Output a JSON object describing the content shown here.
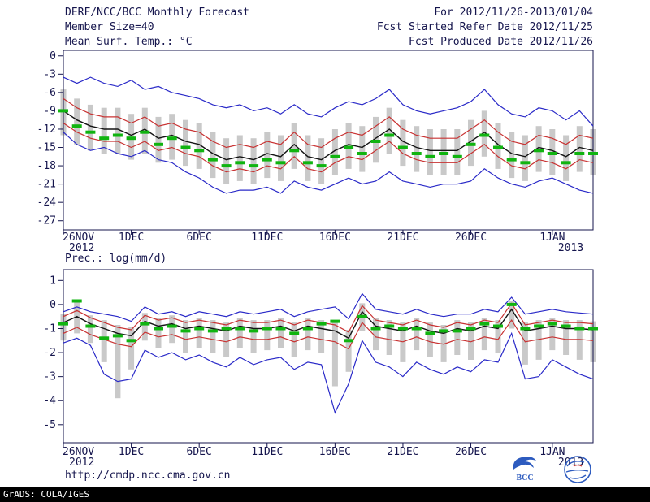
{
  "header": {
    "title": "DERF/NCC/BCC Monthly Forecast",
    "for_range": "For 2012/11/26-2013/01/04",
    "member_size": "Member Size=40",
    "refer_date": "Fcst Started Refer Date 2012/11/25",
    "produced_date": "Fcst Produced Date 2012/11/26"
  },
  "footer": {
    "url": "http://cmdp.ncc.cma.gov.cn",
    "credit": "GrADS: COLA/IGES",
    "bcc_label": "BCC"
  },
  "colors": {
    "blue": "#2a2ac8",
    "red": "#c83232",
    "black": "#141414",
    "green": "#10b410",
    "gray": "#c9c9c9",
    "frame": "#15154d"
  },
  "chart_data": [
    {
      "type": "line",
      "name": "mean-surface-temperature",
      "title": "Mean Surf. Temp.: °C",
      "ylabel": "°C",
      "ylim": [
        -27,
        0
      ],
      "yticks": [
        0,
        -3,
        -6,
        -9,
        -12,
        -15,
        -18,
        -21,
        -24,
        -27
      ],
      "x_days": 40,
      "xticks": [
        {
          "day": 0,
          "label": "26NOV",
          "sub": "2012"
        },
        {
          "day": 5,
          "label": "1DEC"
        },
        {
          "day": 10,
          "label": "6DEC"
        },
        {
          "day": 15,
          "label": "11DEC"
        },
        {
          "day": 20,
          "label": "16DEC"
        },
        {
          "day": 25,
          "label": "21DEC"
        },
        {
          "day": 30,
          "label": "26DEC"
        },
        {
          "day": 36,
          "label": "1JAN",
          "sub": "2013"
        }
      ],
      "bars": {
        "name": "ensemble-spread",
        "top": [
          -5.5,
          -7.0,
          -8.0,
          -8.5,
          -8.5,
          -9.5,
          -8.5,
          -10.0,
          -9.5,
          -10.5,
          -11.0,
          -12.5,
          -13.5,
          -13.0,
          -13.5,
          -12.5,
          -13.0,
          -11.0,
          -13.0,
          -13.5,
          -12.0,
          -11.0,
          -11.5,
          -10.0,
          -8.5,
          -10.5,
          -11.5,
          -12.0,
          -12.0,
          -12.0,
          -10.5,
          -9.0,
          -11.0,
          -12.5,
          -13.0,
          -11.5,
          -12.0,
          -13.0,
          -11.5,
          -12.0
        ],
        "bottom": [
          -13.0,
          -14.5,
          -15.5,
          -16.0,
          -16.0,
          -17.0,
          -16.0,
          -17.5,
          -17.0,
          -18.0,
          -18.5,
          -20.0,
          -21.0,
          -20.5,
          -21.0,
          -20.0,
          -20.5,
          -18.5,
          -20.5,
          -21.0,
          -19.5,
          -18.5,
          -19.0,
          -17.5,
          -16.0,
          -18.0,
          -19.0,
          -19.5,
          -19.5,
          -19.5,
          -18.0,
          -16.5,
          -18.5,
          -20.0,
          -20.5,
          -19.0,
          -19.5,
          -20.5,
          -19.0,
          -19.5
        ]
      },
      "dashes": {
        "name": "daily-highlight",
        "values": [
          -9.0,
          -11.5,
          -12.5,
          -13.5,
          -13.0,
          -13.5,
          -12.5,
          -14.5,
          -13.5,
          -15.0,
          -15.5,
          -17.0,
          -18.0,
          -17.5,
          -18.0,
          -17.0,
          -17.5,
          -15.5,
          -17.5,
          -18.0,
          -16.5,
          -15.0,
          -16.0,
          -14.0,
          -13.0,
          -15.0,
          -16.0,
          -16.5,
          -16.0,
          -16.5,
          -14.5,
          -13.0,
          -15.0,
          -17.0,
          -17.5,
          -15.5,
          -16.0,
          -17.5,
          -16.0,
          -16.0
        ]
      },
      "series": [
        {
          "name": "upper-envelope",
          "color": "blue",
          "values": [
            -3.5,
            -4.5,
            -3.5,
            -4.5,
            -5.0,
            -4.0,
            -5.5,
            -5.0,
            -6.0,
            -6.5,
            -7.0,
            -8.0,
            -8.5,
            -8.0,
            -9.0,
            -8.5,
            -9.5,
            -8.0,
            -9.5,
            -10.0,
            -8.5,
            -7.5,
            -8.0,
            -7.0,
            -5.5,
            -8.0,
            -9.0,
            -9.5,
            -9.0,
            -8.5,
            -7.5,
            -5.5,
            -8.0,
            -9.5,
            -10.0,
            -8.5,
            -9.0,
            -10.5,
            -9.0,
            -11.5
          ]
        },
        {
          "name": "upper-spread",
          "color": "red",
          "values": [
            -7.0,
            -8.5,
            -9.5,
            -10.0,
            -10.0,
            -11.0,
            -10.0,
            -11.5,
            -11.0,
            -12.0,
            -12.5,
            -14.0,
            -15.0,
            -14.5,
            -15.0,
            -14.0,
            -14.5,
            -12.5,
            -14.5,
            -15.0,
            -13.5,
            -12.5,
            -13.0,
            -11.5,
            -10.0,
            -12.0,
            -13.0,
            -13.5,
            -13.5,
            -13.5,
            -12.0,
            -10.5,
            -12.5,
            -14.0,
            -14.5,
            -13.0,
            -13.5,
            -14.5,
            -13.0,
            -13.5
          ]
        },
        {
          "name": "ensemble-mean",
          "color": "black",
          "values": [
            -9.0,
            -10.5,
            -11.5,
            -12.0,
            -12.0,
            -13.0,
            -12.0,
            -13.5,
            -13.0,
            -14.0,
            -14.5,
            -16.0,
            -17.0,
            -16.5,
            -17.0,
            -16.0,
            -16.5,
            -14.5,
            -16.5,
            -17.0,
            -15.5,
            -14.5,
            -15.0,
            -13.5,
            -12.0,
            -14.0,
            -15.0,
            -15.5,
            -15.5,
            -15.5,
            -14.0,
            -12.5,
            -14.5,
            -16.0,
            -16.5,
            -15.0,
            -15.5,
            -16.5,
            -15.0,
            -15.5
          ]
        },
        {
          "name": "lower-spread",
          "color": "red",
          "values": [
            -11.0,
            -12.5,
            -13.5,
            -14.0,
            -14.0,
            -15.0,
            -14.0,
            -15.5,
            -15.0,
            -16.0,
            -16.5,
            -18.0,
            -19.0,
            -18.5,
            -19.0,
            -18.0,
            -18.5,
            -16.5,
            -18.5,
            -19.0,
            -17.5,
            -16.5,
            -17.0,
            -15.5,
            -14.0,
            -16.0,
            -17.0,
            -17.5,
            -17.5,
            -17.5,
            -16.0,
            -14.5,
            -16.5,
            -18.0,
            -18.5,
            -17.0,
            -17.5,
            -18.5,
            -17.0,
            -17.5
          ]
        },
        {
          "name": "lower-envelope",
          "color": "blue",
          "values": [
            -12.5,
            -14.5,
            -15.5,
            -15.0,
            -16.0,
            -16.5,
            -15.5,
            -17.0,
            -17.5,
            -19.0,
            -20.0,
            -21.5,
            -22.5,
            -22.0,
            -22.0,
            -21.5,
            -22.5,
            -20.5,
            -21.5,
            -22.0,
            -21.0,
            -20.0,
            -21.0,
            -20.5,
            -19.0,
            -20.5,
            -21.0,
            -21.5,
            -21.0,
            -21.0,
            -20.5,
            -18.5,
            -20.0,
            -21.0,
            -21.5,
            -20.5,
            -20.0,
            -21.0,
            -22.0,
            -22.5
          ]
        }
      ]
    },
    {
      "type": "line",
      "name": "precipitation",
      "title": "Prec.: log(mm/d)",
      "ylabel": "log(mm/d)",
      "ylim": [
        -5,
        1
      ],
      "yticks": [
        1,
        0,
        -1,
        -2,
        -3,
        -4,
        -5
      ],
      "x_days": 40,
      "xticks": [
        {
          "day": 0,
          "label": "26NOV",
          "sub": "2012"
        },
        {
          "day": 5,
          "label": "1DEC"
        },
        {
          "day": 10,
          "label": "6DEC"
        },
        {
          "day": 15,
          "label": "11DEC"
        },
        {
          "day": 20,
          "label": "16DEC"
        },
        {
          "day": 25,
          "label": "21DEC"
        },
        {
          "day": 30,
          "label": "26DEC"
        },
        {
          "day": 36,
          "label": "1JAN",
          "sub": "2013"
        }
      ],
      "bars": {
        "name": "ensemble-spread",
        "top": [
          -0.4,
          0.2,
          -0.45,
          -0.65,
          -0.85,
          -0.95,
          -0.35,
          -0.55,
          -0.45,
          -0.65,
          -0.55,
          -0.65,
          -0.75,
          -0.55,
          -0.65,
          -0.65,
          -0.55,
          -0.75,
          -0.55,
          -0.65,
          -0.75,
          -1.05,
          0.05,
          -0.55,
          -0.65,
          -0.75,
          -0.55,
          -0.75,
          -0.85,
          -0.65,
          -0.75,
          -0.55,
          -0.65,
          0.15,
          -0.75,
          -0.65,
          -0.55,
          -0.65,
          -0.65,
          -0.7
        ],
        "bottom": [
          -1.5,
          -1.2,
          -1.6,
          -2.4,
          -3.9,
          -2.7,
          -1.5,
          -1.8,
          -1.6,
          -2.0,
          -1.8,
          -2.0,
          -2.2,
          -1.8,
          -2.0,
          -1.9,
          -1.8,
          -2.2,
          -1.9,
          -2.0,
          -3.4,
          -2.8,
          -1.1,
          -1.9,
          -2.1,
          -2.4,
          -1.9,
          -2.2,
          -2.4,
          -2.1,
          -2.3,
          -1.9,
          -2.0,
          -1.0,
          -2.5,
          -2.3,
          -1.9,
          -2.1,
          -2.3,
          -2.4
        ]
      },
      "dashes": {
        "name": "daily-highlight",
        "values": [
          -0.8,
          0.15,
          -0.9,
          -1.4,
          -1.3,
          -1.5,
          -0.8,
          -1.0,
          -0.9,
          -1.1,
          -1.0,
          -1.1,
          -1.0,
          -1.0,
          -1.1,
          -1.0,
          -1.0,
          -1.2,
          -1.0,
          -0.8,
          -0.7,
          -1.5,
          -0.5,
          -1.0,
          -0.9,
          -1.0,
          -1.0,
          -1.2,
          -1.1,
          -1.1,
          -1.0,
          -0.8,
          -0.9,
          0.0,
          -1.0,
          -0.9,
          -0.8,
          -0.9,
          -1.0,
          -1.0
        ]
      },
      "series": [
        {
          "name": "upper-envelope",
          "color": "blue",
          "values": [
            -0.3,
            -0.1,
            -0.3,
            -0.4,
            -0.5,
            -0.7,
            -0.1,
            -0.4,
            -0.3,
            -0.5,
            -0.3,
            -0.4,
            -0.5,
            -0.3,
            -0.4,
            -0.3,
            -0.2,
            -0.5,
            -0.3,
            -0.2,
            -0.1,
            -0.6,
            0.45,
            -0.2,
            -0.3,
            -0.4,
            -0.2,
            -0.4,
            -0.5,
            -0.4,
            -0.4,
            -0.2,
            -0.3,
            0.3,
            -0.4,
            -0.3,
            -0.2,
            -0.3,
            -0.35,
            -0.4
          ]
        },
        {
          "name": "upper-spread",
          "color": "red",
          "values": [
            -0.5,
            -0.25,
            -0.55,
            -0.75,
            -0.95,
            -1.05,
            -0.45,
            -0.65,
            -0.55,
            -0.75,
            -0.65,
            -0.75,
            -0.85,
            -0.65,
            -0.75,
            -0.75,
            -0.65,
            -0.85,
            -0.65,
            -0.75,
            -0.85,
            -1.15,
            -0.05,
            -0.65,
            -0.75,
            -0.85,
            -0.65,
            -0.85,
            -0.95,
            -0.75,
            -0.85,
            -0.65,
            -0.75,
            0.05,
            -0.85,
            -0.75,
            -0.65,
            -0.75,
            -0.75,
            -0.8
          ]
        },
        {
          "name": "ensemble-mean",
          "color": "black",
          "values": [
            -0.75,
            -0.5,
            -0.8,
            -1.0,
            -1.2,
            -1.3,
            -0.7,
            -0.9,
            -0.8,
            -1.0,
            -0.9,
            -1.0,
            -1.1,
            -0.9,
            -1.0,
            -1.0,
            -0.9,
            -1.1,
            -0.9,
            -1.0,
            -1.1,
            -1.4,
            -0.3,
            -0.9,
            -1.0,
            -1.1,
            -0.9,
            -1.1,
            -1.2,
            -1.0,
            -1.1,
            -0.9,
            -1.0,
            -0.2,
            -1.1,
            -1.0,
            -0.9,
            -1.0,
            -1.0,
            -1.05
          ]
        },
        {
          "name": "lower-spread",
          "color": "red",
          "values": [
            -1.2,
            -0.95,
            -1.25,
            -1.45,
            -1.65,
            -1.75,
            -1.15,
            -1.35,
            -1.25,
            -1.45,
            -1.35,
            -1.45,
            -1.55,
            -1.35,
            -1.45,
            -1.45,
            -1.35,
            -1.55,
            -1.35,
            -1.45,
            -1.55,
            -1.85,
            -0.75,
            -1.35,
            -1.45,
            -1.55,
            -1.35,
            -1.55,
            -1.65,
            -1.45,
            -1.55,
            -1.35,
            -1.45,
            -0.65,
            -1.55,
            -1.45,
            -1.35,
            -1.45,
            -1.45,
            -1.5
          ]
        },
        {
          "name": "lower-envelope",
          "color": "blue",
          "values": [
            -1.6,
            -1.4,
            -1.7,
            -2.9,
            -3.2,
            -3.1,
            -1.9,
            -2.2,
            -2.0,
            -2.3,
            -2.1,
            -2.4,
            -2.6,
            -2.2,
            -2.5,
            -2.3,
            -2.2,
            -2.7,
            -2.4,
            -2.5,
            -4.5,
            -3.3,
            -1.5,
            -2.4,
            -2.6,
            -3.0,
            -2.4,
            -2.7,
            -2.9,
            -2.6,
            -2.8,
            -2.3,
            -2.4,
            -1.2,
            -3.1,
            -3.0,
            -2.3,
            -2.6,
            -2.9,
            -3.1
          ]
        }
      ]
    }
  ]
}
